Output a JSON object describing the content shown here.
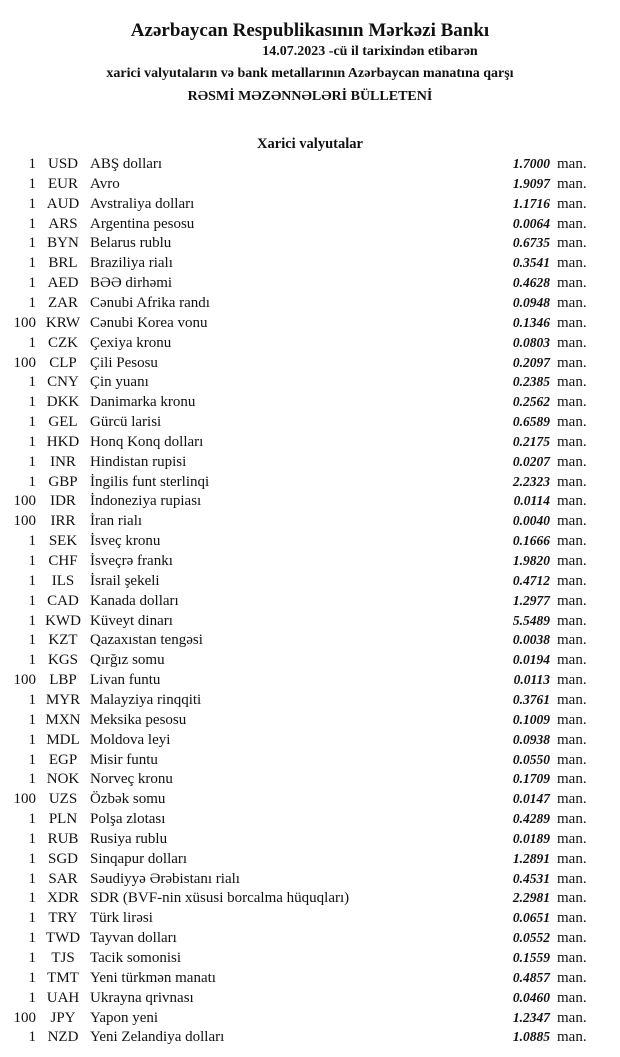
{
  "header": {
    "title": "Azərbaycan Respublikasının Mərkəzi Bankı",
    "date_line": "14.07.2023  -cü il tarixindən etibarən",
    "subtitle": "xarici valyutaların və bank metallarının Azərbaycan manatına qarşı",
    "bulletin": "RƏSMİ MƏZƏNNƏLƏRİ BÜLLETENİ"
  },
  "section_title": "Xarici valyutalar",
  "rates": [
    {
      "amount": "1",
      "code": "USD",
      "name": "ABŞ dolları",
      "rate": "1.7000",
      "unit": "man."
    },
    {
      "amount": "1",
      "code": "EUR",
      "name": "Avro",
      "rate": "1.9097",
      "unit": "man."
    },
    {
      "amount": "1",
      "code": "AUD",
      "name": "Avstraliya dolları",
      "rate": "1.1716",
      "unit": "man."
    },
    {
      "amount": "1",
      "code": "ARS",
      "name": "Argentina pesosu",
      "rate": "0.0064",
      "unit": "man."
    },
    {
      "amount": "1",
      "code": "BYN",
      "name": "Belarus rublu",
      "rate": "0.6735",
      "unit": "man."
    },
    {
      "amount": "1",
      "code": "BRL",
      "name": "Braziliya rialı",
      "rate": "0.3541",
      "unit": "man."
    },
    {
      "amount": "1",
      "code": "AED",
      "name": "BƏƏ dirhəmi",
      "rate": "0.4628",
      "unit": "man."
    },
    {
      "amount": "1",
      "code": "ZAR",
      "name": "Cənubi Afrika randı",
      "rate": "0.0948",
      "unit": "man."
    },
    {
      "amount": "100",
      "code": "KRW",
      "name": "Cənubi Korea vonu",
      "rate": "0.1346",
      "unit": "man."
    },
    {
      "amount": "1",
      "code": "CZK",
      "name": "Çexiya kronu",
      "rate": "0.0803",
      "unit": "man."
    },
    {
      "amount": "100",
      "code": "CLP",
      "name": "Çili Pesosu",
      "rate": "0.2097",
      "unit": "man."
    },
    {
      "amount": "1",
      "code": "CNY",
      "name": "Çin yuanı",
      "rate": "0.2385",
      "unit": "man."
    },
    {
      "amount": "1",
      "code": "DKK",
      "name": "Danimarka kronu",
      "rate": "0.2562",
      "unit": "man."
    },
    {
      "amount": "1",
      "code": "GEL",
      "name": "Gürcü larisi",
      "rate": "0.6589",
      "unit": "man."
    },
    {
      "amount": "1",
      "code": "HKD",
      "name": "Honq Konq dolları",
      "rate": "0.2175",
      "unit": "man."
    },
    {
      "amount": "1",
      "code": "INR",
      "name": "Hindistan rupisi",
      "rate": "0.0207",
      "unit": "man."
    },
    {
      "amount": "1",
      "code": "GBP",
      "name": "İngilis funt sterlinqi",
      "rate": "2.2323",
      "unit": "man."
    },
    {
      "amount": "100",
      "code": "IDR",
      "name": "İndoneziya rupiası",
      "rate": "0.0114",
      "unit": "man."
    },
    {
      "amount": "100",
      "code": "IRR",
      "name": "İran rialı",
      "rate": "0.0040",
      "unit": "man."
    },
    {
      "amount": "1",
      "code": "SEK",
      "name": "İsveç kronu",
      "rate": "0.1666",
      "unit": "man."
    },
    {
      "amount": "1",
      "code": "CHF",
      "name": "İsveçrə frankı",
      "rate": "1.9820",
      "unit": "man."
    },
    {
      "amount": "1",
      "code": "ILS",
      "name": "İsrail şekeli",
      "rate": "0.4712",
      "unit": "man."
    },
    {
      "amount": "1",
      "code": "CAD",
      "name": "Kanada dolları",
      "rate": "1.2977",
      "unit": "man."
    },
    {
      "amount": "1",
      "code": "KWD",
      "name": "Küveyt dinarı",
      "rate": "5.5489",
      "unit": "man."
    },
    {
      "amount": "1",
      "code": "KZT",
      "name": "Qazaxıstan tengəsi",
      "rate": "0.0038",
      "unit": "man."
    },
    {
      "amount": "1",
      "code": "KGS",
      "name": "Qırğız somu",
      "rate": "0.0194",
      "unit": "man."
    },
    {
      "amount": "100",
      "code": "LBP",
      "name": "Livan funtu",
      "rate": "0.0113",
      "unit": "man."
    },
    {
      "amount": "1",
      "code": "MYR",
      "name": "Malayziya rinqqiti",
      "rate": "0.3761",
      "unit": "man."
    },
    {
      "amount": "1",
      "code": "MXN",
      "name": "Meksika pesosu",
      "rate": "0.1009",
      "unit": "man."
    },
    {
      "amount": "1",
      "code": "MDL",
      "name": "Moldova leyi",
      "rate": "0.0938",
      "unit": "man."
    },
    {
      "amount": "1",
      "code": "EGP",
      "name": "Misir funtu",
      "rate": "0.0550",
      "unit": "man."
    },
    {
      "amount": "1",
      "code": "NOK",
      "name": "Norveç kronu",
      "rate": "0.1709",
      "unit": "man."
    },
    {
      "amount": "100",
      "code": "UZS",
      "name": "Özbək somu",
      "rate": "0.0147",
      "unit": "man."
    },
    {
      "amount": "1",
      "code": "PLN",
      "name": "Polşa zlotası",
      "rate": "0.4289",
      "unit": "man."
    },
    {
      "amount": "1",
      "code": "RUB",
      "name": "Rusiya rublu",
      "rate": "0.0189",
      "unit": "man."
    },
    {
      "amount": "1",
      "code": "SGD",
      "name": "Sinqapur dolları",
      "rate": "1.2891",
      "unit": "man."
    },
    {
      "amount": "1",
      "code": "SAR",
      "name": "Səudiyyə Ərəbistanı rialı",
      "rate": "0.4531",
      "unit": "man."
    },
    {
      "amount": "1",
      "code": "XDR",
      "name": "SDR (BVF-nin xüsusi borcalma hüquqları)",
      "rate": "2.2981",
      "unit": "man."
    },
    {
      "amount": "1",
      "code": "TRY",
      "name": "Türk lirəsi",
      "rate": "0.0651",
      "unit": "man."
    },
    {
      "amount": "1",
      "code": "TWD",
      "name": "Tayvan dolları",
      "rate": "0.0552",
      "unit": "man."
    },
    {
      "amount": "1",
      "code": "TJS",
      "name": "Tacik somonisi",
      "rate": "0.1559",
      "unit": "man."
    },
    {
      "amount": "1",
      "code": "TMT",
      "name": "Yeni türkmən manatı",
      "rate": "0.4857",
      "unit": "man."
    },
    {
      "amount": "1",
      "code": "UAH",
      "name": "Ukrayna qrivnası",
      "rate": "0.0460",
      "unit": "man."
    },
    {
      "amount": "100",
      "code": "JPY",
      "name": "Yapon yeni",
      "rate": "1.2347",
      "unit": "man."
    },
    {
      "amount": "1",
      "code": "NZD",
      "name": "Yeni Zelandiya dolları",
      "rate": "1.0885",
      "unit": "man."
    }
  ]
}
